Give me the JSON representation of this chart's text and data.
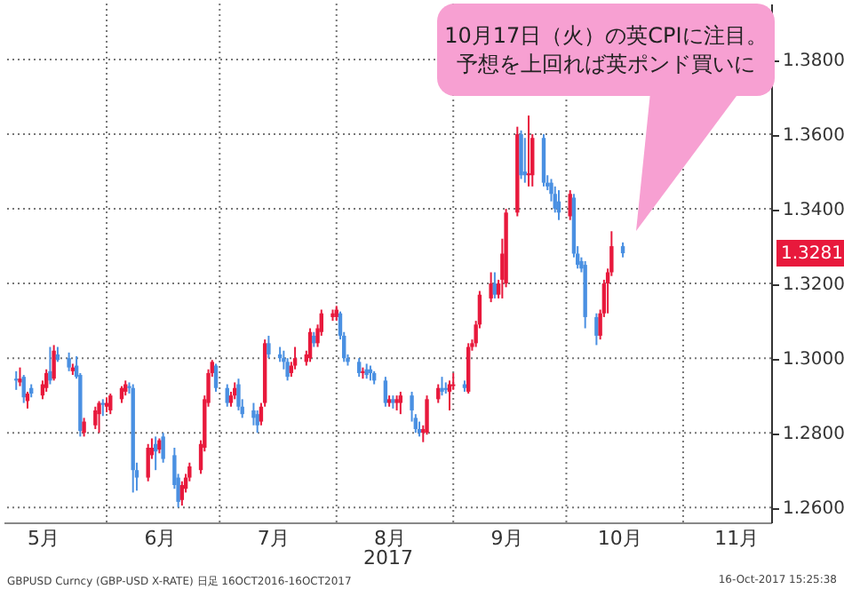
{
  "chart_data": {
    "type": "candlestick",
    "xlabel": "2017",
    "x": [
      "2017-05-08",
      "2017-05-09",
      "2017-05-10",
      "2017-05-11",
      "2017-05-12",
      "2017-05-15",
      "2017-05-16",
      "2017-05-17",
      "2017-05-18",
      "2017-05-19",
      "2017-05-22",
      "2017-05-23",
      "2017-05-24",
      "2017-05-25",
      "2017-05-26",
      "2017-05-29",
      "2017-05-30",
      "2017-05-31",
      "2017-06-01",
      "2017-06-02",
      "2017-06-05",
      "2017-06-06",
      "2017-06-07",
      "2017-06-08",
      "2017-06-09",
      "2017-06-12",
      "2017-06-13",
      "2017-06-14",
      "2017-06-15",
      "2017-06-16",
      "2017-06-19",
      "2017-06-20",
      "2017-06-21",
      "2017-06-22",
      "2017-06-23",
      "2017-06-26",
      "2017-06-27",
      "2017-06-28",
      "2017-06-29",
      "2017-06-30",
      "2017-07-03",
      "2017-07-04",
      "2017-07-05",
      "2017-07-06",
      "2017-07-07",
      "2017-07-10",
      "2017-07-11",
      "2017-07-12",
      "2017-07-13",
      "2017-07-14",
      "2017-07-17",
      "2017-07-18",
      "2017-07-19",
      "2017-07-20",
      "2017-07-21",
      "2017-07-24",
      "2017-07-25",
      "2017-07-26",
      "2017-07-27",
      "2017-07-28",
      "2017-07-31",
      "2017-08-01",
      "2017-08-02",
      "2017-08-03",
      "2017-08-04",
      "2017-08-07",
      "2017-08-08",
      "2017-08-09",
      "2017-08-10",
      "2017-08-11",
      "2017-08-14",
      "2017-08-15",
      "2017-08-16",
      "2017-08-17",
      "2017-08-18",
      "2017-08-21",
      "2017-08-22",
      "2017-08-23",
      "2017-08-24",
      "2017-08-25",
      "2017-08-28",
      "2017-08-29",
      "2017-08-30",
      "2017-08-31",
      "2017-09-01",
      "2017-09-04",
      "2017-09-05",
      "2017-09-06",
      "2017-09-07",
      "2017-09-08",
      "2017-09-11",
      "2017-09-12",
      "2017-09-13",
      "2017-09-14",
      "2017-09-15",
      "2017-09-18",
      "2017-09-19",
      "2017-09-20",
      "2017-09-21",
      "2017-09-22",
      "2017-09-25",
      "2017-09-26",
      "2017-09-27",
      "2017-09-28",
      "2017-09-29",
      "2017-10-02",
      "2017-10-03",
      "2017-10-04",
      "2017-10-05",
      "2017-10-06",
      "2017-10-09",
      "2017-10-10",
      "2017-10-11",
      "2017-10-12",
      "2017-10-13",
      "2017-10-16"
    ],
    "ohlc": [
      [
        1.2945,
        1.2965,
        1.2915,
        1.294
      ],
      [
        1.2935,
        1.2975,
        1.2925,
        1.2945
      ],
      [
        1.295,
        1.2955,
        1.288,
        1.2895
      ],
      [
        1.2885,
        1.291,
        1.2865,
        1.2905
      ],
      [
        1.292,
        1.293,
        1.2895,
        1.2905
      ],
      [
        1.29,
        1.294,
        1.289,
        1.293
      ],
      [
        1.292,
        1.297,
        1.291,
        1.296
      ],
      [
        1.2965,
        1.303,
        1.293,
        1.294
      ],
      [
        1.2945,
        1.3035,
        1.294,
        1.302
      ],
      [
        1.301,
        1.303,
        1.299,
        1.2995
      ],
      [
        1.3,
        1.3015,
        1.2965,
        1.2975
      ],
      [
        1.2965,
        1.2985,
        1.2955,
        1.2975
      ],
      [
        1.298,
        1.3005,
        1.2945,
        1.295
      ],
      [
        1.2955,
        1.296,
        1.279,
        1.2805
      ],
      [
        1.28,
        1.284,
        1.279,
        1.283
      ],
      [
        1.282,
        1.287,
        1.281,
        1.286
      ],
      [
        1.285,
        1.2885,
        1.28,
        1.288
      ],
      [
        1.288,
        1.289,
        1.2845,
        1.2875
      ],
      [
        1.287,
        1.2895,
        1.2855,
        1.288
      ],
      [
        1.286,
        1.2905,
        1.285,
        1.29
      ],
      [
        1.289,
        1.2925,
        1.288,
        1.292
      ],
      [
        1.291,
        1.294,
        1.29,
        1.293
      ],
      [
        1.2925,
        1.2935,
        1.2905,
        1.292
      ],
      [
        1.292,
        1.293,
        1.264,
        1.27
      ],
      [
        1.27,
        1.272,
        1.2645,
        1.268
      ],
      [
        1.268,
        1.277,
        1.267,
        1.276
      ],
      [
        1.274,
        1.2785,
        1.273,
        1.276
      ],
      [
        1.277,
        1.279,
        1.27,
        1.275
      ],
      [
        1.2755,
        1.2785,
        1.2745,
        1.278
      ],
      [
        1.279,
        1.28,
        1.272,
        1.273
      ],
      [
        1.274,
        1.276,
        1.265,
        1.266
      ],
      [
        1.268,
        1.269,
        1.26,
        1.2615
      ],
      [
        1.262,
        1.267,
        1.2605,
        1.266
      ],
      [
        1.265,
        1.269,
        1.264,
        1.268
      ],
      [
        1.268,
        1.272,
        1.267,
        1.271
      ],
      [
        1.27,
        1.278,
        1.269,
        1.277
      ],
      [
        1.276,
        1.29,
        1.275,
        1.289
      ],
      [
        1.288,
        1.297,
        1.287,
        1.296
      ],
      [
        1.296,
        1.2995,
        1.295,
        1.299
      ],
      [
        1.298,
        1.2985,
        1.291,
        1.292
      ],
      [
        1.292,
        1.293,
        1.287,
        1.288
      ],
      [
        1.288,
        1.291,
        1.287,
        1.29
      ],
      [
        1.29,
        1.2935,
        1.289,
        1.292
      ],
      [
        1.293,
        1.2945,
        1.286,
        1.287
      ],
      [
        1.287,
        1.289,
        1.284,
        1.285
      ],
      [
        1.286,
        1.288,
        1.282,
        1.284
      ],
      [
        1.285,
        1.286,
        1.28,
        1.282
      ],
      [
        1.283,
        1.288,
        1.282,
        1.287
      ],
      [
        1.288,
        1.305,
        1.287,
        1.304
      ],
      [
        1.304,
        1.306,
        1.3,
        1.301
      ],
      [
        1.301,
        1.303,
        1.299,
        1.3
      ],
      [
        1.3,
        1.302,
        1.297,
        1.299
      ],
      [
        1.299,
        1.3,
        1.294,
        1.295
      ],
      [
        1.296,
        1.299,
        1.295,
        1.298
      ],
      [
        1.298,
        1.303,
        1.297,
        1.3
      ],
      [
        1.299,
        1.302,
        1.298,
        1.301
      ],
      [
        1.3,
        1.308,
        1.299,
        1.307
      ],
      [
        1.306,
        1.307,
        1.303,
        1.304
      ],
      [
        1.304,
        1.309,
        1.303,
        1.308
      ],
      [
        1.307,
        1.313,
        1.306,
        1.312
      ],
      [
        1.311,
        1.313,
        1.31,
        1.312
      ],
      [
        1.311,
        1.314,
        1.31,
        1.313
      ],
      [
        1.312,
        1.3125,
        1.305,
        1.306
      ],
      [
        1.306,
        1.307,
        1.299,
        1.3
      ],
      [
        1.3,
        1.301,
        1.298,
        1.299
      ],
      [
        1.299,
        1.3,
        1.295,
        1.296
      ],
      [
        1.296,
        1.2975,
        1.2945,
        1.2965
      ],
      [
        1.297,
        1.2985,
        1.2945,
        1.2955
      ],
      [
        1.297,
        1.298,
        1.294,
        1.296
      ],
      [
        1.296,
        1.2965,
        1.293,
        1.294
      ],
      [
        1.294,
        1.295,
        1.287,
        1.288
      ],
      [
        1.288,
        1.29,
        1.287,
        1.289
      ],
      [
        1.289,
        1.29,
        1.2865,
        1.288
      ],
      [
        1.288,
        1.29,
        1.286,
        1.289
      ],
      [
        1.288,
        1.291,
        1.285,
        1.29
      ],
      [
        1.29,
        1.291,
        1.283,
        1.286
      ],
      [
        1.284,
        1.285,
        1.28,
        1.281
      ],
      [
        1.281,
        1.283,
        1.279,
        1.28
      ],
      [
        1.28,
        1.282,
        1.2775,
        1.281
      ],
      [
        1.28,
        1.29,
        1.2795,
        1.289
      ],
      [
        1.289,
        1.293,
        1.288,
        1.292
      ],
      [
        1.292,
        1.295,
        1.29,
        1.291
      ],
      [
        1.292,
        1.2935,
        1.2905,
        1.2915
      ],
      [
        1.291,
        1.294,
        1.286,
        1.293
      ],
      [
        1.2925,
        1.296,
        1.2915,
        1.293
      ],
      [
        1.293,
        1.294,
        1.291,
        1.292
      ],
      [
        1.291,
        1.304,
        1.2905,
        1.303
      ],
      [
        1.303,
        1.305,
        1.302,
        1.304
      ],
      [
        1.304,
        1.31,
        1.303,
        1.309
      ],
      [
        1.309,
        1.318,
        1.308,
        1.317
      ],
      [
        1.316,
        1.323,
        1.315,
        1.32
      ],
      [
        1.32,
        1.323,
        1.316,
        1.317
      ],
      [
        1.317,
        1.321,
        1.316,
        1.32
      ],
      [
        1.321,
        1.332,
        1.316,
        1.328
      ],
      [
        1.32,
        1.34,
        1.319,
        1.339
      ],
      [
        1.339,
        1.362,
        1.338,
        1.36
      ],
      [
        1.36,
        1.361,
        1.348,
        1.349
      ],
      [
        1.35,
        1.359,
        1.347,
        1.349
      ],
      [
        1.349,
        1.365,
        1.346,
        1.3495
      ],
      [
        1.349,
        1.36,
        1.346,
        1.359
      ],
      [
        1.359,
        1.36,
        1.346,
        1.347
      ],
      [
        1.347,
        1.349,
        1.345,
        1.346
      ],
      [
        1.347,
        1.348,
        1.342,
        1.344
      ],
      [
        1.344,
        1.346,
        1.339,
        1.34
      ],
      [
        1.342,
        1.345,
        1.337,
        1.339
      ],
      [
        1.338,
        1.345,
        1.337,
        1.344
      ],
      [
        1.343,
        1.344,
        1.327,
        1.328
      ],
      [
        1.328,
        1.33,
        1.324,
        1.325
      ],
      [
        1.326,
        1.327,
        1.323,
        1.324
      ],
      [
        1.325,
        1.326,
        1.308,
        1.311
      ],
      [
        1.311,
        1.312,
        1.3035,
        1.306
      ],
      [
        1.306,
        1.313,
        1.305,
        1.312
      ],
      [
        1.312,
        1.321,
        1.311,
        1.32
      ],
      [
        1.32,
        1.324,
        1.312,
        1.323
      ],
      [
        1.323,
        1.334,
        1.322,
        1.33
      ],
      [
        1.33,
        1.331,
        1.327,
        1.3281
      ]
    ],
    "xlim": [
      "2017-05-07",
      "2017-11-22"
    ],
    "xticks": [
      {
        "value": "2017-05-15",
        "label": "5月"
      },
      {
        "value": "2017-06-01",
        "label": null
      },
      {
        "value": "2017-06-15",
        "label": "6月"
      },
      {
        "value": "2017-07-01",
        "label": null
      },
      {
        "value": "2017-07-15",
        "label": "7月"
      },
      {
        "value": "2017-08-01",
        "label": null
      },
      {
        "value": "2017-08-15",
        "label": "8月"
      },
      {
        "value": "2017-09-01",
        "label": null
      },
      {
        "value": "2017-09-15",
        "label": "9月"
      },
      {
        "value": "2017-10-01",
        "label": null
      },
      {
        "value": "2017-10-15",
        "label": "10月"
      },
      {
        "value": "2017-11-01",
        "label": null
      },
      {
        "value": "2017-11-15",
        "label": "11月"
      }
    ],
    "ylim": [
      1.256,
      1.395
    ],
    "yticks": [
      {
        "value": 1.26,
        "label": "1.2600"
      },
      {
        "value": 1.28,
        "label": "1.2800"
      },
      {
        "value": 1.3,
        "label": "1.3000"
      },
      {
        "value": 1.32,
        "label": "1.3200"
      },
      {
        "value": 1.34,
        "label": "1.3400"
      },
      {
        "value": 1.36,
        "label": "1.3600"
      },
      {
        "value": 1.38,
        "label": "1.3800"
      }
    ],
    "grid": true,
    "annotations": [
      "10月17日（火）の英CPIに注目。",
      "予想を上回れば英ポンド買いに",
      "1.3281",
      "GBPUSD Curncy (GBP-USD X-RATE) 日足 16OCT2016-16OCT2017",
      "16-Oct-2017 15:25:38"
    ]
  }
}
